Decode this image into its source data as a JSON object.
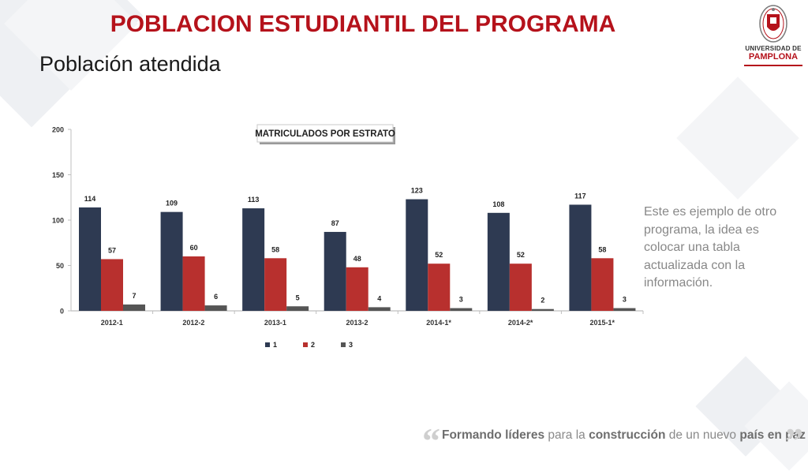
{
  "slide": {
    "title": "POBLACION ESTUDIANTIL DEL PROGRAMA",
    "subtitle": "Población atendida",
    "note": "Este es ejemplo de otro programa, la idea es colocar una tabla actualizada con la información.",
    "logo": {
      "line1": "UNIVERSIDAD DE",
      "line2": "PAMPLONA",
      "icon": "university-crest-icon"
    },
    "footer": {
      "p1": "Formando ",
      "p2": "líderes",
      "p3": " para la ",
      "p4": "construcción",
      "p5": " de un nuevo ",
      "p6": "país en paz",
      "open_quote": "“",
      "close_quote": "”"
    }
  },
  "colors": {
    "title": "#b5121b",
    "series1": "#2e3a52",
    "series2": "#b8302e",
    "series3": "#555555"
  },
  "chart_data": {
    "type": "bar",
    "title": "MATRICULADOS POR ESTRATO",
    "categories": [
      "2012-1",
      "2012-2",
      "2013-1",
      "2013-2",
      "2014-1*",
      "2014-2*",
      "2015-1*"
    ],
    "series": [
      {
        "name": "1",
        "values": [
          114,
          109,
          113,
          87,
          123,
          108,
          117
        ],
        "color": "#2e3a52"
      },
      {
        "name": "2",
        "values": [
          57,
          60,
          58,
          48,
          52,
          52,
          58
        ],
        "color": "#b8302e"
      },
      {
        "name": "3",
        "values": [
          7,
          6,
          5,
          4,
          3,
          2,
          3
        ],
        "color": "#555555"
      }
    ],
    "yticks": [
      0,
      50,
      100,
      150,
      200
    ],
    "ylim": [
      0,
      200
    ],
    "grid": false,
    "legend": "bottom"
  }
}
